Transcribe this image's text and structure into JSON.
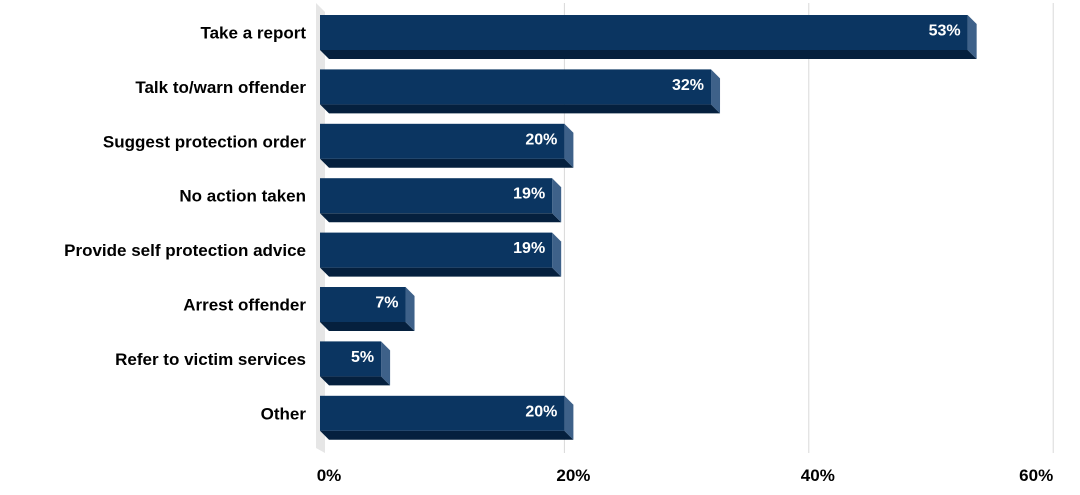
{
  "chart_data": {
    "type": "bar",
    "orientation": "horizontal",
    "categories": [
      "Take a report",
      "Talk to/warn offender",
      "Suggest protection order",
      "No action taken",
      "Provide self protection advice",
      "Arrest offender",
      "Refer to victim services",
      "Other"
    ],
    "values": [
      53,
      32,
      20,
      19,
      19,
      7,
      5,
      20
    ],
    "data_labels": [
      "53%",
      "32%",
      "20%",
      "19%",
      "19%",
      "7%",
      "5%",
      "20%"
    ],
    "x_ticks": [
      "0%",
      "20%",
      "40%",
      "60%"
    ],
    "x_tick_values": [
      0,
      20,
      40,
      60
    ],
    "xlim": [
      0,
      60
    ],
    "title": "",
    "xlabel": "",
    "ylabel": "",
    "grid": "vertical",
    "legend": "none",
    "style": "3d",
    "colors": {
      "bar_front": "#0b3561",
      "bar_bottom": "#05203e",
      "bar_side": "#3e6189",
      "grid": "#d9d9d9",
      "floor": "#e6e6e6"
    }
  }
}
